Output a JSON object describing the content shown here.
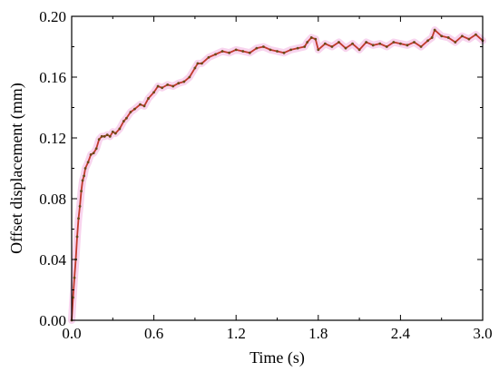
{
  "chart_data": {
    "type": "line",
    "title": "",
    "xlabel": "Time (s)",
    "ylabel": "Offset displacement (mm)",
    "xlim": [
      0.0,
      3.0
    ],
    "ylim": [
      0.0,
      0.2
    ],
    "x_ticks": [
      "0.0",
      "0.6",
      "1.2",
      "1.8",
      "2.4",
      "3.0"
    ],
    "y_ticks": [
      "0.00",
      "0.04",
      "0.08",
      "0.12",
      "0.16",
      "0.20"
    ],
    "grid": false,
    "legend": "none",
    "colors": {
      "line": "#c0392b",
      "marker": "#6b4a16",
      "band": "#f6c6e8"
    },
    "series": [
      {
        "x": [
          0.0,
          0.01,
          0.02,
          0.03,
          0.04,
          0.05,
          0.06,
          0.07,
          0.08,
          0.09,
          0.1,
          0.12,
          0.14,
          0.16,
          0.18,
          0.2,
          0.22,
          0.24,
          0.26,
          0.28,
          0.3,
          0.32,
          0.35,
          0.38,
          0.4,
          0.43,
          0.46,
          0.5,
          0.53,
          0.56,
          0.6,
          0.63,
          0.66,
          0.7,
          0.74,
          0.78,
          0.82,
          0.86,
          0.9,
          0.92,
          0.95,
          1.0,
          1.05,
          1.1,
          1.15,
          1.2,
          1.25,
          1.3,
          1.35,
          1.4,
          1.45,
          1.5,
          1.55,
          1.6,
          1.65,
          1.7,
          1.72,
          1.75,
          1.78,
          1.8,
          1.85,
          1.9,
          1.95,
          2.0,
          2.05,
          2.1,
          2.15,
          2.2,
          2.25,
          2.3,
          2.35,
          2.4,
          2.45,
          2.5,
          2.55,
          2.6,
          2.63,
          2.65,
          2.7,
          2.75,
          2.8,
          2.85,
          2.9,
          2.95,
          3.0
        ],
        "y": [
          0.0,
          0.015,
          0.028,
          0.04,
          0.055,
          0.067,
          0.075,
          0.085,
          0.092,
          0.095,
          0.1,
          0.104,
          0.109,
          0.11,
          0.113,
          0.119,
          0.121,
          0.121,
          0.122,
          0.121,
          0.124,
          0.123,
          0.126,
          0.131,
          0.133,
          0.137,
          0.139,
          0.142,
          0.141,
          0.146,
          0.15,
          0.154,
          0.153,
          0.155,
          0.154,
          0.156,
          0.157,
          0.16,
          0.166,
          0.169,
          0.169,
          0.173,
          0.175,
          0.177,
          0.176,
          0.178,
          0.177,
          0.176,
          0.179,
          0.18,
          0.178,
          0.177,
          0.176,
          0.178,
          0.179,
          0.18,
          0.183,
          0.186,
          0.185,
          0.178,
          0.182,
          0.18,
          0.183,
          0.179,
          0.182,
          0.178,
          0.183,
          0.181,
          0.182,
          0.18,
          0.183,
          0.182,
          0.181,
          0.183,
          0.18,
          0.184,
          0.186,
          0.191,
          0.187,
          0.186,
          0.183,
          0.187,
          0.185,
          0.188,
          0.184
        ]
      }
    ]
  }
}
